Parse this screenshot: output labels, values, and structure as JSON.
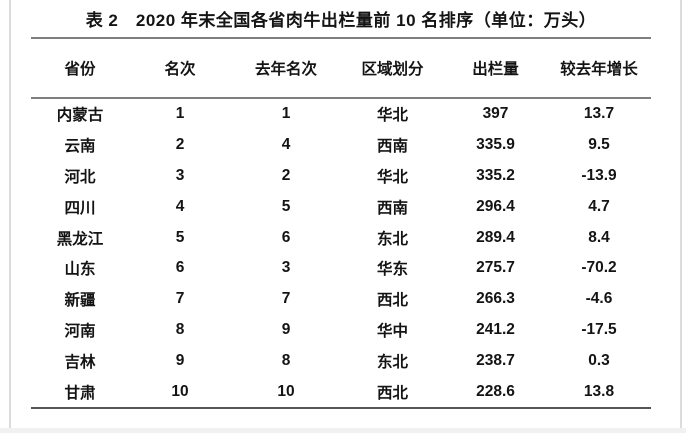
{
  "title": "表 2　2020 年末全国各省肉牛出栏量前 10 名排序（单位：万头）",
  "table": {
    "headers": [
      "省份",
      "名次",
      "去年名次",
      "区域划分",
      "出栏量",
      "较去年增长"
    ],
    "rows": [
      [
        "内蒙古",
        "1",
        "1",
        "华北",
        "397",
        "13.7"
      ],
      [
        "云南",
        "2",
        "4",
        "西南",
        "335.9",
        "9.5"
      ],
      [
        "河北",
        "3",
        "2",
        "华北",
        "335.2",
        "-13.9"
      ],
      [
        "四川",
        "4",
        "5",
        "西南",
        "296.4",
        "4.7"
      ],
      [
        "黑龙江",
        "5",
        "6",
        "东北",
        "289.4",
        "8.4"
      ],
      [
        "山东",
        "6",
        "3",
        "华东",
        "275.7",
        "-70.2"
      ],
      [
        "新疆",
        "7",
        "7",
        "西北",
        "266.3",
        "-4.6"
      ],
      [
        "河南",
        "8",
        "9",
        "华中",
        "241.2",
        "-17.5"
      ],
      [
        "吉林",
        "9",
        "8",
        "东北",
        "238.7",
        "0.3"
      ],
      [
        "甘肃",
        "10",
        "10",
        "西北",
        "228.6",
        "13.8"
      ]
    ]
  },
  "colors": {
    "text": "#141414",
    "rule_light": "#7e7e7e",
    "rule_dark": "#555555",
    "page_edge": "#dcdcdc",
    "page_background": "#ffffff"
  }
}
